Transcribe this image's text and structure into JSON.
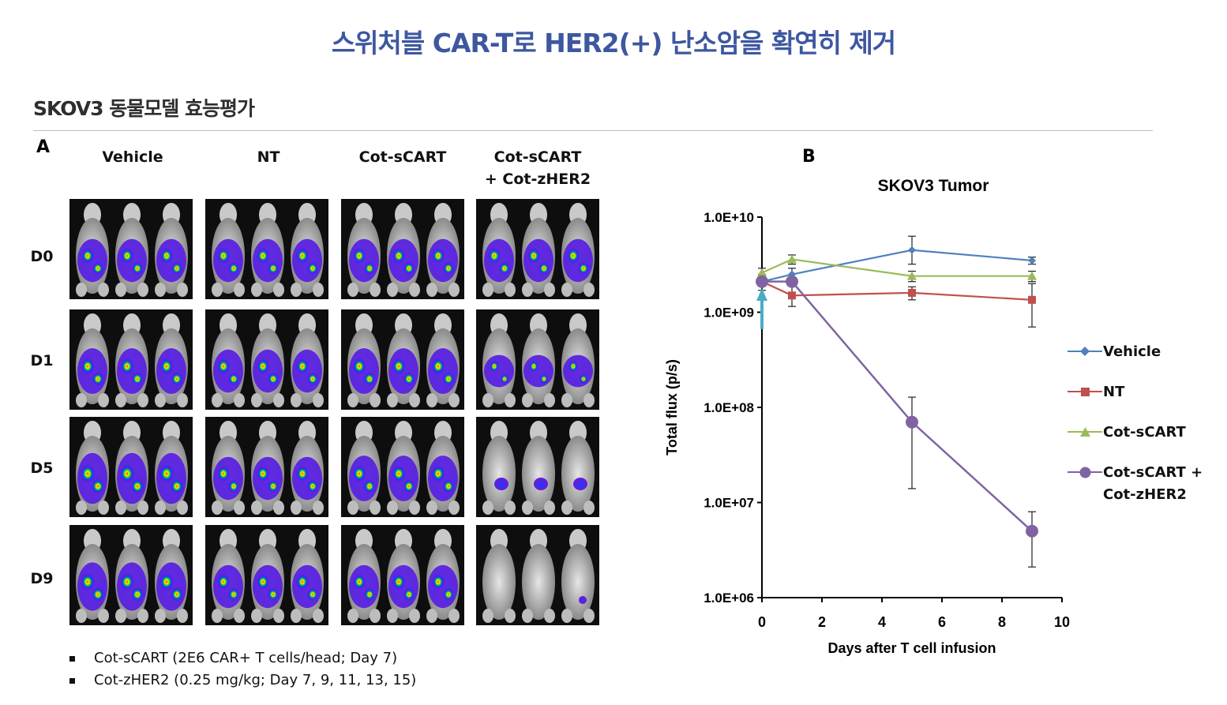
{
  "header": {
    "title": "스위처블 CAR-T로 HER2(+) 난소암을 확연히 제거",
    "subtitle": "SKOV3 동물모델 효능평가"
  },
  "panel_a": {
    "label": "A",
    "columns": [
      {
        "line1": "Vehicle",
        "line2": ""
      },
      {
        "line1": "NT",
        "line2": ""
      },
      {
        "line1": "Cot-sCART",
        "line2": ""
      },
      {
        "line1": "Cot-sCART",
        "line2": "+ Cot-zHER2"
      }
    ],
    "rows": [
      "D0",
      "D1",
      "D5",
      "D9"
    ],
    "signal_levels": [
      [
        0.8,
        0.8,
        0.8,
        0.8
      ],
      [
        0.85,
        0.8,
        0.85,
        0.6
      ],
      [
        0.95,
        0.8,
        0.85,
        0.15
      ],
      [
        0.9,
        0.8,
        0.8,
        0.05
      ]
    ]
  },
  "notes": [
    "Cot-sCART (2E6 CAR+ T cells/head; Day 7)",
    "Cot-zHER2 (0.25 mg/kg; Day 7, 9, 11, 13, 15)"
  ],
  "panel_b": {
    "label": "B"
  },
  "colors": {
    "title": "#3d57a0",
    "vehicle": "#4f81bd",
    "nt": "#c0504d",
    "cot_scart": "#9bbb59",
    "combo": "#8064a2",
    "arrow": "#4bacc6"
  },
  "chart_data": {
    "type": "line",
    "title": "SKOV3 Tumor",
    "xlabel": "Days after T cell infusion",
    "ylabel": "Total flux (p/s)",
    "xlim": [
      0,
      10
    ],
    "xticks": [
      "0",
      "2",
      "4",
      "6",
      "8",
      "10"
    ],
    "yscale": "log",
    "ylim": [
      1000000,
      10000000000
    ],
    "yticks": [
      "1.0E+06",
      "1.0E+07",
      "1.0E+08",
      "1.0E+09",
      "1.0E+10"
    ],
    "treatment_arrow_day": 0,
    "series": [
      {
        "name": "Vehicle",
        "color": "#4f81bd",
        "marker": "diamond",
        "x": [
          0,
          1,
          5,
          9
        ],
        "y": [
          2100000000,
          2500000000,
          4500000000,
          3500000000
        ],
        "err_low": [
          1700000000,
          2100000000,
          3200000000,
          3200000000
        ],
        "err_high": [
          2500000000,
          2900000000,
          6300000000,
          3800000000
        ]
      },
      {
        "name": "NT",
        "color": "#c0504d",
        "marker": "square",
        "x": [
          0,
          1,
          5,
          9
        ],
        "y": [
          2100000000,
          1500000000,
          1600000000,
          1350000000
        ],
        "err_low": [
          1900000000,
          1150000000,
          1350000000,
          700000000
        ],
        "err_high": [
          2300000000,
          1900000000,
          1850000000,
          2000000000
        ]
      },
      {
        "name": "Cot-sCART",
        "color": "#9bbb59",
        "marker": "triangle",
        "x": [
          0,
          1,
          5,
          9
        ],
        "y": [
          2600000000,
          3600000000,
          2400000000,
          2400000000
        ],
        "err_low": [
          2300000000,
          3200000000,
          2100000000,
          2100000000
        ],
        "err_high": [
          2900000000,
          4000000000,
          2700000000,
          2700000000
        ]
      },
      {
        "name": "Cot-sCART + Cot-zHER2",
        "legend_line1": "Cot-sCART +",
        "legend_line2": "Cot-zHER2",
        "color": "#8064a2",
        "marker": "circle",
        "x": [
          0,
          1,
          5,
          9
        ],
        "y": [
          2100000000,
          2100000000,
          70000000,
          5000000
        ],
        "err_low": [
          1900000000,
          1900000000,
          14000000,
          2100000
        ],
        "err_high": [
          2300000000,
          2300000000,
          128000000,
          8000000
        ]
      }
    ]
  }
}
